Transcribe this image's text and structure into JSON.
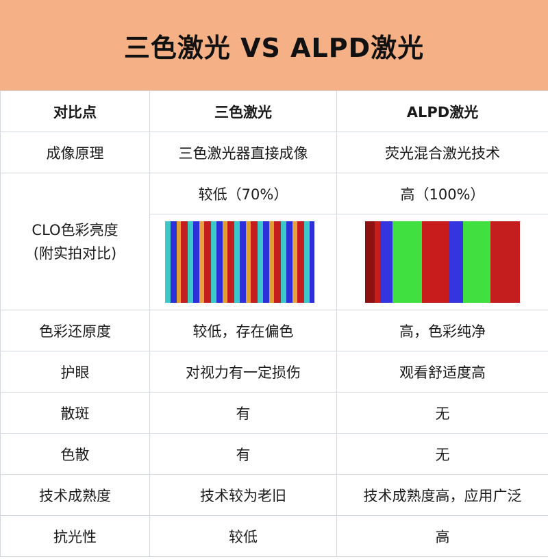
{
  "title": "三色激光 VS ALPD激光",
  "header": {
    "col1": "对比点",
    "col2": "三色激光",
    "col3": "ALPD激光"
  },
  "rows": [
    {
      "label": "成像原理",
      "a": "三色激光器直接成像",
      "b": "荧光混合激光技术"
    },
    {
      "label_line1": "CLO色彩亮度",
      "label_line2": "(附实拍对比)",
      "a": "较低（70%）",
      "b": "高（100%）"
    },
    {
      "label": "色彩还原度",
      "a": "较低，存在偏色",
      "b": "高，色彩纯净"
    },
    {
      "label": "护眼",
      "a": "对视力有一定损伤",
      "b": "观看舒适度高"
    },
    {
      "label": "散斑",
      "a": "有",
      "b": "无"
    },
    {
      "label": "色散",
      "a": "有",
      "b": "无"
    },
    {
      "label": "技术成熟度",
      "a": "技术较为老旧",
      "b": "技术成熟度高，应用广泛"
    },
    {
      "label": "抗光性",
      "a": "较低",
      "b": "高"
    }
  ],
  "colors": {
    "banner": "#f5b185",
    "border": "#d3d8de",
    "red": "#c41e1e",
    "blue": "#2d2fd8",
    "green": "#3fe03f",
    "cyan": "#3cc8c8",
    "orange": "#e0a030"
  }
}
